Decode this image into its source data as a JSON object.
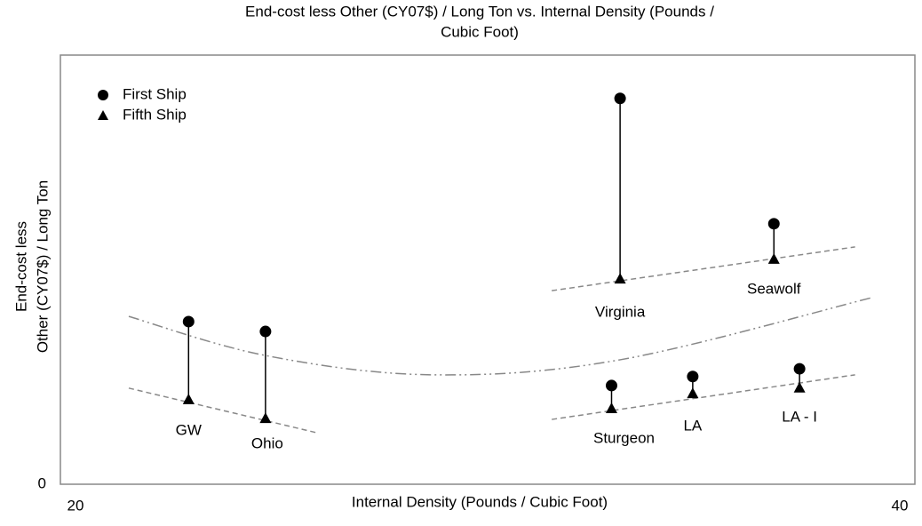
{
  "chart_data": {
    "type": "dropline",
    "title": [
      "End-cost less Other (CY07$) / Long Ton vs. Internal Density (Pounds /",
      "Cubic Foot)"
    ],
    "x_label": "Internal Density (Pounds / Cubic Foot)",
    "y_label": [
      "End-cost less",
      "Other (CY07$) / Long Ton"
    ],
    "categories": [
      "GW",
      "Ohio",
      "Virginia",
      "Seawolf",
      "Sturgeon",
      "LA",
      "LA - I"
    ],
    "x": [
      23,
      24.8,
      33.1,
      36.7,
      32.9,
      34.8,
      37.3
    ],
    "series": [
      {
        "name": "First Ship",
        "marker": "circle",
        "color": "#000000",
        "values": [
          37.9,
          35.6,
          89.9,
          60.7,
          23.0,
          25.1,
          26.9
        ]
      },
      {
        "name": "Fifth Ship",
        "marker": "triangle",
        "color": "#000000",
        "values": [
          19.7,
          15.3,
          47.8,
          52.4,
          17.6,
          21.1,
          22.4
        ]
      }
    ],
    "trend_lines": [
      {
        "style": "dashed",
        "color": "#888888",
        "x": [
          21.6,
          26.0
        ],
        "y": [
          22.4,
          12.0
        ]
      },
      {
        "style": "dashed",
        "color": "#888888",
        "x": [
          31.5,
          38.6
        ],
        "y": [
          45.1,
          55.3
        ]
      },
      {
        "style": "dashed",
        "color": "#888888",
        "x": [
          31.5,
          38.6
        ],
        "y": [
          15.1,
          25.5
        ]
      },
      {
        "style": "dashdot",
        "color": "#888888",
        "x": [
          21.6,
          24.8,
          28.7,
          33.1,
          39.0
        ],
        "y": [
          39.1,
          30.0,
          25.5,
          29.0,
          43.5
        ]
      }
    ],
    "xlim": [
      20,
      40
    ],
    "xticks": [
      20,
      40
    ],
    "ylim": [
      0,
      100
    ],
    "yticks": [
      0
    ],
    "legend": "top-left"
  }
}
